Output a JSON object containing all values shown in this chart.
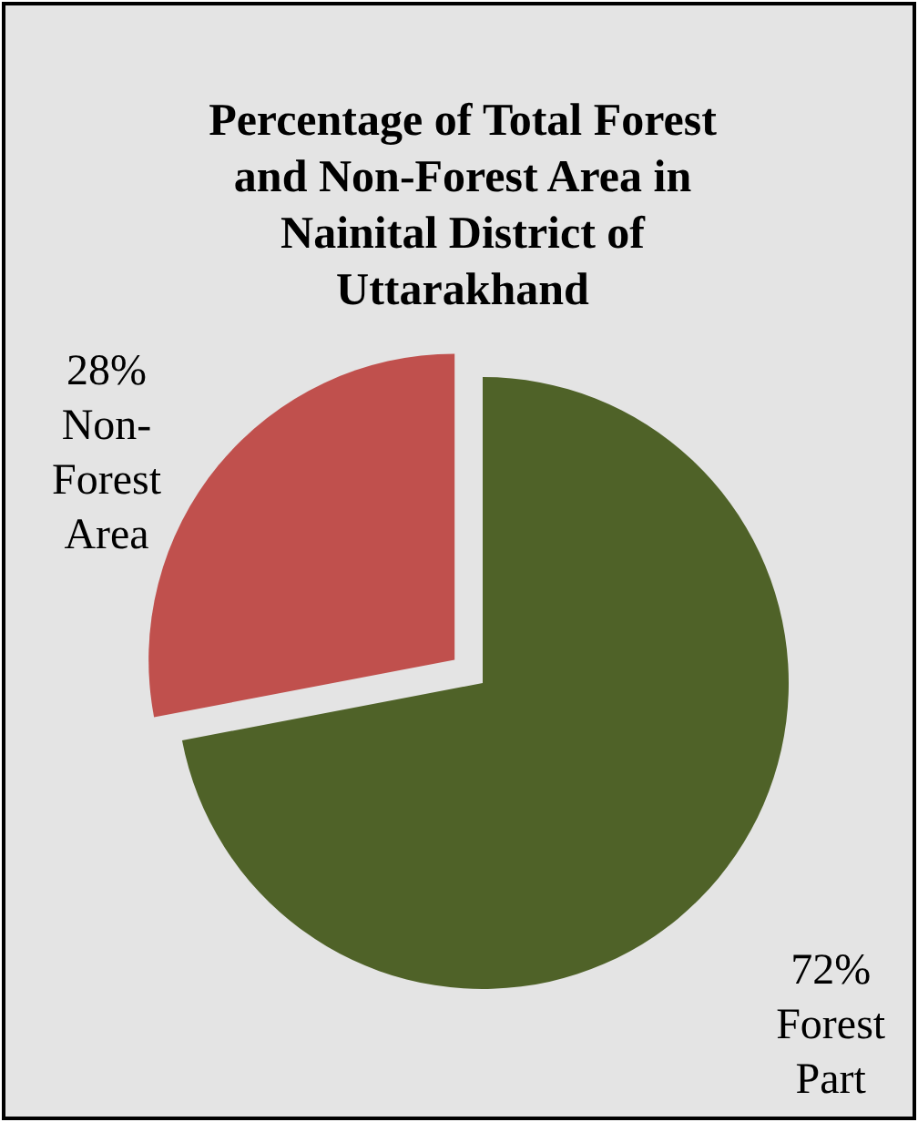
{
  "chart_data": {
    "type": "pie",
    "title": "Percentage of Total Forest and Non-Forest Area in Nainital District of Uttarakhand",
    "categories": [
      "Forest Part",
      "Non-Forest Area"
    ],
    "values": [
      72,
      28
    ],
    "colors": [
      "#4f6228",
      "#c0504d"
    ],
    "value_labels": [
      "72%",
      "28%"
    ]
  }
}
